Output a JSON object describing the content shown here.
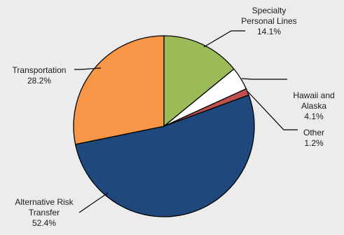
{
  "chart_data": {
    "type": "pie",
    "title": "",
    "slices": [
      {
        "name_lines": [
          "Specialty",
          "Personal Lines"
        ],
        "value": 14.1,
        "value_label": "14.1%",
        "color": "#9bbb59"
      },
      {
        "name_lines": [
          "Hawaii and",
          "Alaska"
        ],
        "value": 4.1,
        "value_label": "4.1%",
        "color": "#ffffff"
      },
      {
        "name_lines": [
          "Other"
        ],
        "value": 1.2,
        "value_label": "1.2%",
        "color": "#c0504d"
      },
      {
        "name_lines": [
          "Alternative Risk",
          "Transfer"
        ],
        "value": 52.4,
        "value_label": "52.4%",
        "color": "#1f497d"
      },
      {
        "name_lines": [
          "Transportation"
        ],
        "value": 28.2,
        "value_label": "28.2%",
        "color": "#f79646"
      }
    ],
    "start": "12 o'clock",
    "direction": "clockwise",
    "legend": "none",
    "slice_border_color": "#000000"
  }
}
